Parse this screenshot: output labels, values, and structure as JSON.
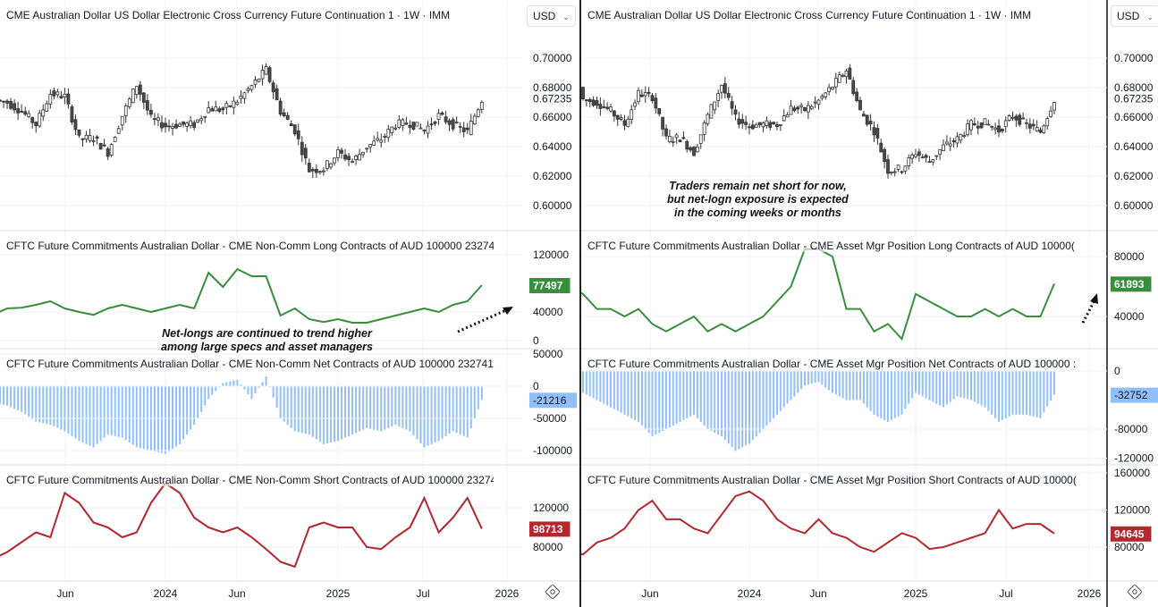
{
  "left": {
    "currency": "USD",
    "price_title": "CME Australian Dollar US Dollar Electronic Cross Currency Future Continuation 1 · 1W · IMM",
    "long_title": "CFTC Future Commitments Australian Dollar - CME Non-Comm Long Contracts of AUD 100000 23274",
    "net_title": "CFTC Future Commitments Australian Dollar - CME Non-Comm Net Contracts of AUD 100000 232741",
    "short_title": "CFTC Future Commitments Australian Dollar - CME Non-Comm Short Contracts of AUD 100000 23274",
    "annotation": "Net-longs are continued to trend higher\namong large specs and asset managers",
    "time_ticks": [
      "Jun",
      "2024",
      "Jun",
      "2025",
      "Jul",
      "2026"
    ]
  },
  "right": {
    "currency": "USD",
    "price_title": "CME Australian Dollar US Dollar Electronic Cross Currency Future Continuation 1 · 1W · IMM",
    "long_title": "CFTC Future Commitments Australian Dollar - CME Asset Mgr Position Long Contracts of AUD 10000(",
    "net_title": "CFTC Future Commitments Australian Dollar - CME Asset Mgr Position Net Contracts of AUD 100000 :",
    "short_title": "CFTC Future Commitments Australian Dollar - CME Asset Mgr Position Short Contracts of AUD 10000(",
    "annotation": "Traders remain net short for now,\nbut net-logn exposure is expected\nin the coming weeks or months",
    "time_ticks": [
      "Jun",
      "2024",
      "Jun",
      "2025",
      "Jul",
      "2026"
    ]
  },
  "colors": {
    "long": "#388e3c",
    "net": "#90bff9",
    "short": "#b2282e",
    "candle_down": "#4a4a4a",
    "candle_up": "#ffffff"
  },
  "chart_data": [
    {
      "type": "candlestick",
      "title": "CME Australian Dollar US Dollar Electronic Cross Currency Future Continuation 1 · 1W · IMM",
      "x": [
        "2023-01",
        "2023-02",
        "2023-03",
        "2023-04",
        "2023-05",
        "2023-06",
        "2023-07",
        "2023-08",
        "2023-09",
        "2023-10",
        "2023-11",
        "2023-12",
        "2024-01",
        "2024-02",
        "2024-03",
        "2024-04",
        "2024-05",
        "2024-06",
        "2024-07",
        "2024-08",
        "2024-09",
        "2024-10",
        "2024-11",
        "2024-12",
        "2025-01",
        "2025-02",
        "2025-03",
        "2025-04",
        "2025-05",
        "2025-06",
        "2025-07",
        "2025-08",
        "2025-09",
        "2025-10",
        "2025-11",
        "2025-12"
      ],
      "close": [
        0.705,
        0.672,
        0.67,
        0.664,
        0.655,
        0.676,
        0.674,
        0.645,
        0.646,
        0.636,
        0.661,
        0.682,
        0.659,
        0.654,
        0.655,
        0.655,
        0.666,
        0.665,
        0.671,
        0.681,
        0.692,
        0.664,
        0.651,
        0.624,
        0.625,
        0.636,
        0.63,
        0.64,
        0.645,
        0.655,
        0.656,
        0.651,
        0.661,
        0.655,
        0.65,
        0.672
      ],
      "last_value": "0.67235",
      "y_ticks": [
        "0.70000",
        "0.68000",
        "0.66000",
        "0.64000",
        "0.62000",
        "0.60000"
      ],
      "ylim": [
        0.59,
        0.725
      ]
    },
    {
      "type": "line",
      "panel": "left",
      "title": "CFTC Future Commitments Australian Dollar - CME Non-Comm Long Contracts of AUD 100000 23274",
      "values": [
        35000,
        36000,
        45000,
        46000,
        50000,
        55000,
        45000,
        40000,
        36000,
        45000,
        50000,
        45000,
        40000,
        45000,
        50000,
        45000,
        95000,
        75000,
        100000,
        90000,
        90000,
        35000,
        45000,
        30000,
        26000,
        30000,
        25000,
        25000,
        30000,
        35000,
        40000,
        45000,
        40000,
        50000,
        55000,
        77497
      ],
      "last_value": "77497",
      "y_ticks": [
        "120000",
        "40000",
        "0"
      ]
    },
    {
      "type": "histogram",
      "panel": "left",
      "title": "CFTC Future Commitments Australian Dollar - CME Non-Comm Net Contracts of AUD 100000 232741",
      "values": [
        -15000,
        -25000,
        -30000,
        -40000,
        -55000,
        -60000,
        -70000,
        -85000,
        -95000,
        -75000,
        -80000,
        -95000,
        -100000,
        -105000,
        -90000,
        -60000,
        -20000,
        5000,
        10000,
        -20000,
        15000,
        -50000,
        -70000,
        -75000,
        -90000,
        -85000,
        -75000,
        -65000,
        -70000,
        -60000,
        -70000,
        -95000,
        -85000,
        -70000,
        -80000,
        -21216
      ],
      "last_value": "-21216",
      "y_ticks": [
        "50000",
        "0",
        "-50000",
        "-100000"
      ]
    },
    {
      "type": "line",
      "panel": "left",
      "title": "CFTC Future Commitments Australian Dollar - CME Non-Comm Short Contracts of AUD 100000 23274",
      "values": [
        70000,
        68000,
        75000,
        85000,
        95000,
        90000,
        135000,
        125000,
        105000,
        100000,
        90000,
        95000,
        125000,
        145000,
        135000,
        110000,
        100000,
        95000,
        100000,
        90000,
        78000,
        65000,
        60000,
        100000,
        105000,
        100000,
        100000,
        80000,
        78000,
        90000,
        100000,
        130000,
        95000,
        110000,
        130000,
        98713
      ],
      "last_value": "98713",
      "y_ticks": [
        "120000",
        "80000"
      ]
    },
    {
      "type": "line",
      "panel": "right",
      "title": "CFTC Future Commitments Australian Dollar - CME Asset Mgr Position Long Contracts of AUD 10000(",
      "values": [
        60000,
        55000,
        45000,
        45000,
        40000,
        45000,
        35000,
        30000,
        35000,
        40000,
        30000,
        35000,
        30000,
        35000,
        40000,
        50000,
        60000,
        85000,
        85000,
        80000,
        45000,
        45000,
        30000,
        35000,
        25000,
        55000,
        50000,
        45000,
        40000,
        40000,
        45000,
        40000,
        45000,
        40000,
        40000,
        61893
      ],
      "last_value": "61893",
      "y_ticks": [
        "80000",
        "40000"
      ]
    },
    {
      "type": "histogram",
      "panel": "right",
      "title": "CFTC Future Commitments Australian Dollar - CME Asset Mgr Position Net Contracts of AUD 100000 :",
      "values": [
        -10000,
        -30000,
        -40000,
        -50000,
        -60000,
        -70000,
        -90000,
        -80000,
        -70000,
        -60000,
        -80000,
        -90000,
        -110000,
        -100000,
        -80000,
        -60000,
        -40000,
        -20000,
        -15000,
        -30000,
        -40000,
        -40000,
        -60000,
        -70000,
        -60000,
        -30000,
        -40000,
        -50000,
        -35000,
        -40000,
        -50000,
        -70000,
        -60000,
        -60000,
        -65000,
        -32752
      ],
      "last_value": "-32752",
      "y_ticks": [
        "0",
        "-80000",
        "-120000"
      ]
    },
    {
      "type": "line",
      "panel": "right",
      "title": "CFTC Future Commitments Australian Dollar - CME Asset Mgr Position Short Contracts of AUD 10000(",
      "values": [
        75000,
        72000,
        85000,
        90000,
        100000,
        120000,
        130000,
        110000,
        110000,
        100000,
        95000,
        115000,
        135000,
        140000,
        130000,
        110000,
        100000,
        95000,
        110000,
        95000,
        90000,
        80000,
        75000,
        85000,
        95000,
        90000,
        78000,
        80000,
        85000,
        90000,
        95000,
        120000,
        100000,
        105000,
        105000,
        94645
      ],
      "last_value": "94645",
      "y_ticks": [
        "160000",
        "120000",
        "80000"
      ]
    }
  ]
}
